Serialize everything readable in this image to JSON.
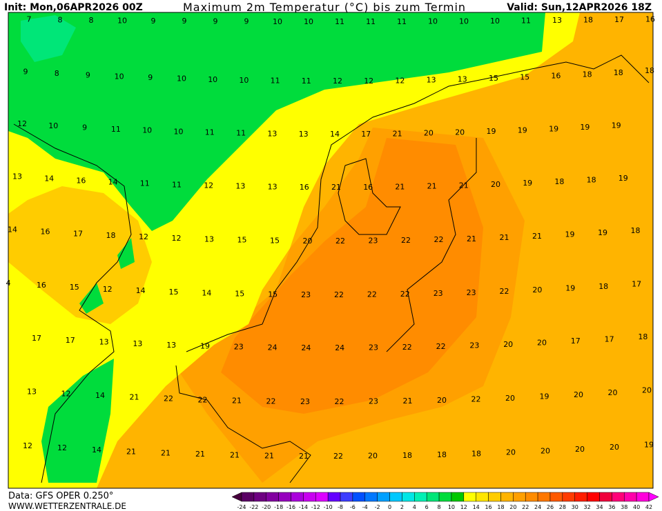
{
  "header": {
    "init": "Init: Mon,06APR2026 00Z",
    "title": "Maximum 2m Temperatur (°C) bis zum Termin",
    "valid": "Valid: Sun,12APR2026 18Z"
  },
  "grid": {
    "rows": [
      [
        7,
        8,
        8,
        10,
        9,
        9,
        9,
        9,
        10,
        10,
        11,
        11,
        11,
        10,
        10,
        10,
        11,
        13,
        18,
        17,
        16
      ],
      [
        9,
        8,
        9,
        10,
        9,
        10,
        10,
        10,
        11,
        11,
        12,
        12,
        12,
        13,
        13,
        15,
        15,
        16,
        18,
        18,
        18
      ],
      [
        12,
        10,
        9,
        11,
        10,
        10,
        11,
        11,
        13,
        13,
        14,
        17,
        21,
        20,
        20,
        19,
        19,
        19,
        19,
        19
      ],
      [
        13,
        14,
        16,
        14,
        11,
        11,
        12,
        13,
        13,
        16,
        21,
        16,
        21,
        21,
        21,
        20,
        19,
        18,
        18,
        19
      ],
      [
        14,
        16,
        17,
        18,
        12,
        12,
        13,
        15,
        15,
        20,
        22,
        23,
        22,
        22,
        21,
        21,
        21,
        19,
        19,
        18
      ],
      [
        4,
        16,
        15,
        12,
        14,
        15,
        14,
        15,
        15,
        23,
        22,
        22,
        22,
        23,
        23,
        22,
        20,
        19,
        18,
        17
      ],
      [
        17,
        17,
        13,
        13,
        13,
        19,
        23,
        24,
        24,
        24,
        23,
        22,
        22,
        23,
        20,
        20,
        17,
        17,
        18
      ],
      [
        13,
        12,
        14,
        21,
        22,
        22,
        21,
        22,
        23,
        22,
        23,
        21,
        20,
        22,
        20,
        19,
        20,
        20,
        20
      ],
      [
        12,
        12,
        14,
        21,
        21,
        21,
        21,
        21,
        21,
        22,
        20,
        18,
        18,
        18,
        20,
        20,
        20,
        20,
        19
      ]
    ]
  },
  "colorbar": {
    "ticks": [
      -24,
      -22,
      -20,
      -18,
      -16,
      -14,
      -12,
      -10,
      -8,
      -6,
      -4,
      -2,
      0,
      2,
      4,
      6,
      8,
      10,
      12,
      14,
      16,
      18,
      20,
      22,
      24,
      26,
      28,
      30,
      32,
      34,
      36,
      38,
      40,
      42
    ],
    "colors": [
      "#46003c",
      "#5a0064",
      "#6e0082",
      "#8200a0",
      "#9600be",
      "#aa00dc",
      "#c800f0",
      "#dc00ff",
      "#6400ff",
      "#3c3cff",
      "#0050ff",
      "#0078ff",
      "#00a0ff",
      "#00c8ff",
      "#00e6e6",
      "#00f0b4",
      "#00e678",
      "#00dc3c",
      "#00c800",
      "#ffff00",
      "#ffe600",
      "#ffcc00",
      "#ffb400",
      "#ffa000",
      "#ff8c00",
      "#ff7800",
      "#ff5a00",
      "#ff3c00",
      "#ff1e00",
      "#ff0000",
      "#f0003c",
      "#ff0078",
      "#ff00aa",
      "#ff00dc",
      "#ff00ff"
    ]
  },
  "footer": {
    "source": "Data: GFS OPER 0.250°",
    "site": "WWW.WETTERZENTRALE.DE"
  }
}
